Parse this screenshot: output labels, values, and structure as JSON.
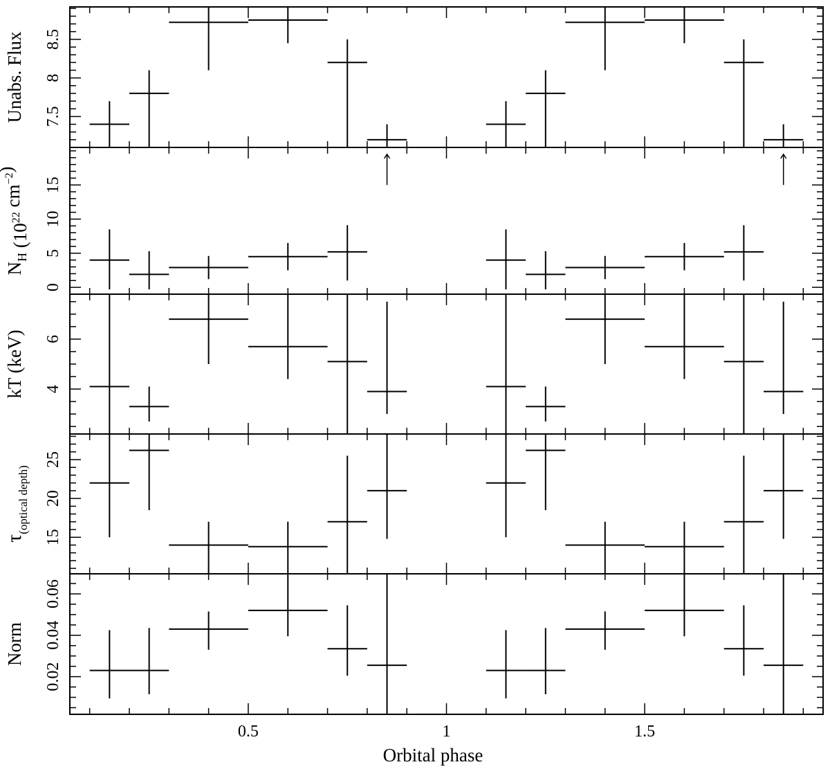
{
  "chart_data": {
    "type": "scatter",
    "xlabel": "Orbital phase",
    "xlim": [
      0.05,
      1.95
    ],
    "xticks": {
      "major": [
        0.5,
        1,
        1.5
      ],
      "major_labels": [
        "0.5",
        "1",
        "1.5"
      ],
      "minor_step": 0.1
    },
    "panels": [
      {
        "id": "flux",
        "ylabel": "Unabs. Flux",
        "ylim": [
          7.1,
          8.92
        ],
        "yticks": [
          7.5,
          8,
          8.5
        ],
        "ytick_labels": [
          "7.5",
          "8",
          "8.5"
        ],
        "yminor_step": 0.1,
        "points": [
          {
            "x": 0.15,
            "xerr": 0.05,
            "y": 7.4,
            "ylo": 7.1,
            "yhi": 7.7
          },
          {
            "x": 0.25,
            "xerr": 0.05,
            "y": 7.8,
            "ylo": 7.1,
            "yhi": 8.1
          },
          {
            "x": 0.4,
            "xerr": 0.1,
            "y": 8.72,
            "ylo": 8.1,
            "yhi": 8.92
          },
          {
            "x": 0.6,
            "xerr": 0.1,
            "y": 8.75,
            "ylo": 8.45,
            "yhi": 8.92
          },
          {
            "x": 0.75,
            "xerr": 0.05,
            "y": 8.2,
            "ylo": 7.1,
            "yhi": 8.5
          },
          {
            "x": 0.85,
            "xerr": 0.05,
            "y": 7.2,
            "ylo": 7.1,
            "yhi": 7.4
          },
          {
            "x": 1.15,
            "xerr": 0.05,
            "y": 7.4,
            "ylo": 7.1,
            "yhi": 7.7
          },
          {
            "x": 1.25,
            "xerr": 0.05,
            "y": 7.8,
            "ylo": 7.1,
            "yhi": 8.1
          },
          {
            "x": 1.4,
            "xerr": 0.1,
            "y": 8.72,
            "ylo": 8.1,
            "yhi": 8.92
          },
          {
            "x": 1.6,
            "xerr": 0.1,
            "y": 8.75,
            "ylo": 8.45,
            "yhi": 8.92
          },
          {
            "x": 1.75,
            "xerr": 0.05,
            "y": 8.2,
            "ylo": 7.1,
            "yhi": 8.5
          },
          {
            "x": 1.85,
            "xerr": 0.05,
            "y": 7.2,
            "ylo": 7.1,
            "yhi": 7.4
          }
        ]
      },
      {
        "id": "nh",
        "ylabel": "N_H (10^22 cm^-2)",
        "ylim": [
          -1,
          20.5
        ],
        "yticks": [
          0,
          5,
          10,
          15
        ],
        "ytick_labels": [
          "0",
          "5",
          "10",
          "15"
        ],
        "yminor_step": 1,
        "points": [
          {
            "x": 0.15,
            "xerr": 0.05,
            "y": 4.0,
            "ylo": -0.3,
            "yhi": 8.5
          },
          {
            "x": 0.25,
            "xerr": 0.05,
            "y": 1.9,
            "ylo": -0.3,
            "yhi": 5.3
          },
          {
            "x": 0.4,
            "xerr": 0.1,
            "y": 2.9,
            "ylo": 1.2,
            "yhi": 4.6
          },
          {
            "x": 0.6,
            "xerr": 0.1,
            "y": 4.5,
            "ylo": 2.5,
            "yhi": 6.5
          },
          {
            "x": 0.75,
            "xerr": 0.05,
            "y": 5.2,
            "ylo": 1.0,
            "yhi": 9.1
          },
          {
            "x": 1.15,
            "xerr": 0.05,
            "y": 4.0,
            "ylo": -0.3,
            "yhi": 8.5
          },
          {
            "x": 1.25,
            "xerr": 0.05,
            "y": 1.9,
            "ylo": -0.3,
            "yhi": 5.3
          },
          {
            "x": 1.4,
            "xerr": 0.1,
            "y": 2.9,
            "ylo": 1.2,
            "yhi": 4.6
          },
          {
            "x": 1.6,
            "xerr": 0.1,
            "y": 4.5,
            "ylo": 2.5,
            "yhi": 6.5
          },
          {
            "x": 1.75,
            "xerr": 0.05,
            "y": 5.2,
            "ylo": 1.0,
            "yhi": 9.1
          }
        ],
        "lower_limits": [
          {
            "x": 0.85,
            "ylo": 15.0,
            "yhi": 19.5
          },
          {
            "x": 1.85,
            "ylo": 15.0,
            "yhi": 19.5
          }
        ]
      },
      {
        "id": "kt",
        "ylabel": "kT (keV)",
        "ylim": [
          2.2,
          7.8
        ],
        "yticks": [
          4,
          6
        ],
        "ytick_labels": [
          "4",
          "6"
        ],
        "yminor_step": 0.5,
        "points": [
          {
            "x": 0.15,
            "xerr": 0.05,
            "y": 4.1,
            "ylo": 2.2,
            "yhi": 7.8
          },
          {
            "x": 0.25,
            "xerr": 0.05,
            "y": 3.3,
            "ylo": 2.7,
            "yhi": 4.1
          },
          {
            "x": 0.4,
            "xerr": 0.1,
            "y": 6.8,
            "ylo": 5.0,
            "yhi": 7.8
          },
          {
            "x": 0.6,
            "xerr": 0.1,
            "y": 5.7,
            "ylo": 4.4,
            "yhi": 7.8
          },
          {
            "x": 0.75,
            "xerr": 0.05,
            "y": 5.1,
            "ylo": 2.2,
            "yhi": 7.8
          },
          {
            "x": 0.85,
            "xerr": 0.05,
            "y": 3.9,
            "ylo": 3.0,
            "yhi": 7.5
          },
          {
            "x": 1.15,
            "xerr": 0.05,
            "y": 4.1,
            "ylo": 2.2,
            "yhi": 7.8
          },
          {
            "x": 1.25,
            "xerr": 0.05,
            "y": 3.3,
            "ylo": 2.7,
            "yhi": 4.1
          },
          {
            "x": 1.4,
            "xerr": 0.1,
            "y": 6.8,
            "ylo": 5.0,
            "yhi": 7.8
          },
          {
            "x": 1.6,
            "xerr": 0.1,
            "y": 5.7,
            "ylo": 4.4,
            "yhi": 7.8
          },
          {
            "x": 1.75,
            "xerr": 0.05,
            "y": 5.1,
            "ylo": 2.2,
            "yhi": 7.8
          },
          {
            "x": 1.85,
            "xerr": 0.05,
            "y": 3.9,
            "ylo": 3.0,
            "yhi": 7.5
          }
        ]
      },
      {
        "id": "tau",
        "ylabel": "τ_(optical depth)",
        "ylim": [
          10.3,
          28.3
        ],
        "yticks": [
          15,
          20,
          25
        ],
        "ytick_labels": [
          "15",
          "20",
          "25"
        ],
        "yminor_step": 1,
        "points": [
          {
            "x": 0.15,
            "xerr": 0.05,
            "y": 22.0,
            "ylo": 15.0,
            "yhi": 28.3
          },
          {
            "x": 0.25,
            "xerr": 0.05,
            "y": 26.2,
            "ylo": 18.5,
            "yhi": 28.3
          },
          {
            "x": 0.4,
            "xerr": 0.1,
            "y": 14.0,
            "ylo": 10.3,
            "yhi": 17.0
          },
          {
            "x": 0.6,
            "xerr": 0.1,
            "y": 13.8,
            "ylo": 10.3,
            "yhi": 17.0
          },
          {
            "x": 0.75,
            "xerr": 0.05,
            "y": 17.0,
            "ylo": 10.3,
            "yhi": 25.5
          },
          {
            "x": 0.85,
            "xerr": 0.05,
            "y": 21.0,
            "ylo": 14.8,
            "yhi": 28.3
          },
          {
            "x": 1.15,
            "xerr": 0.05,
            "y": 22.0,
            "ylo": 15.0,
            "yhi": 28.3
          },
          {
            "x": 1.25,
            "xerr": 0.05,
            "y": 26.2,
            "ylo": 18.5,
            "yhi": 28.3
          },
          {
            "x": 1.4,
            "xerr": 0.1,
            "y": 14.0,
            "ylo": 10.3,
            "yhi": 17.0
          },
          {
            "x": 1.6,
            "xerr": 0.1,
            "y": 13.8,
            "ylo": 10.3,
            "yhi": 17.0
          },
          {
            "x": 1.75,
            "xerr": 0.05,
            "y": 17.0,
            "ylo": 10.3,
            "yhi": 25.5
          },
          {
            "x": 1.85,
            "xerr": 0.05,
            "y": 21.0,
            "ylo": 14.8,
            "yhi": 28.3
          }
        ]
      },
      {
        "id": "norm",
        "ylabel": "Norm",
        "ylim": [
          0.0018,
          0.0697
        ],
        "yticks": [
          0.02,
          0.04,
          0.06
        ],
        "ytick_labels": [
          "0.02",
          "0.04",
          "0.06"
        ],
        "yminor_step": 0.005,
        "points": [
          {
            "x": 0.15,
            "xerr": 0.05,
            "y": 0.023,
            "ylo": 0.0095,
            "yhi": 0.0425
          },
          {
            "x": 0.25,
            "xerr": 0.05,
            "y": 0.023,
            "ylo": 0.0115,
            "yhi": 0.0435
          },
          {
            "x": 0.4,
            "xerr": 0.1,
            "y": 0.043,
            "ylo": 0.033,
            "yhi": 0.0515
          },
          {
            "x": 0.6,
            "xerr": 0.1,
            "y": 0.052,
            "ylo": 0.0395,
            "yhi": 0.0697
          },
          {
            "x": 0.75,
            "xerr": 0.05,
            "y": 0.0335,
            "ylo": 0.0205,
            "yhi": 0.0545
          },
          {
            "x": 0.85,
            "xerr": 0.05,
            "y": 0.0255,
            "ylo": 0.0018,
            "yhi": 0.0697
          },
          {
            "x": 1.15,
            "xerr": 0.05,
            "y": 0.023,
            "ylo": 0.0095,
            "yhi": 0.0425
          },
          {
            "x": 1.25,
            "xerr": 0.05,
            "y": 0.023,
            "ylo": 0.0115,
            "yhi": 0.0435
          },
          {
            "x": 1.4,
            "xerr": 0.1,
            "y": 0.043,
            "ylo": 0.033,
            "yhi": 0.0515
          },
          {
            "x": 1.6,
            "xerr": 0.1,
            "y": 0.052,
            "ylo": 0.0395,
            "yhi": 0.0697
          },
          {
            "x": 1.75,
            "xerr": 0.05,
            "y": 0.0335,
            "ylo": 0.0205,
            "yhi": 0.0545
          },
          {
            "x": 1.85,
            "xerr": 0.05,
            "y": 0.0255,
            "ylo": 0.0018,
            "yhi": 0.0697
          }
        ]
      }
    ]
  }
}
